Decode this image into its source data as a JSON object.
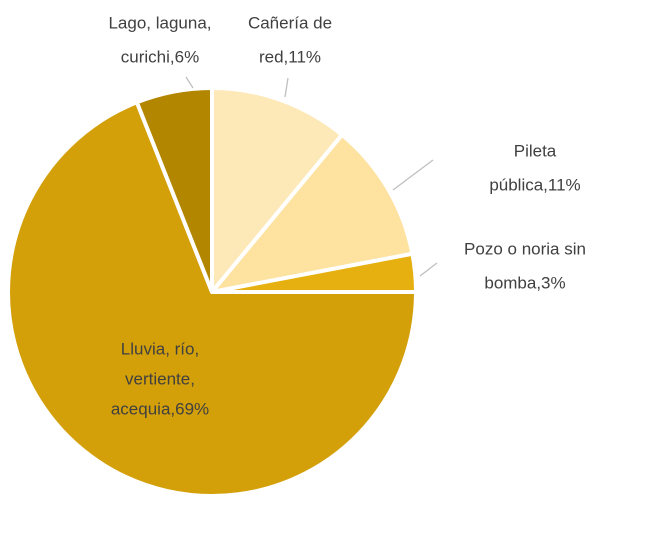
{
  "chart_data": {
    "type": "pie",
    "values": [
      11,
      11,
      3,
      69,
      6
    ],
    "value_labels": [
      [
        "Cañería de",
        "red,11%"
      ],
      [
        "Pileta",
        "pública,11%"
      ],
      [
        "Pozo o noria sin",
        "bomba,3%"
      ],
      [
        "Lluvia, río,",
        "vertiente,",
        "acequia,69%"
      ],
      [
        "Lago, laguna,",
        "curichi,6%"
      ]
    ],
    "colors": [
      "#fde9b8",
      "#fde2a0",
      "#e6b010",
      "#d4a00a",
      "#b38600"
    ]
  }
}
